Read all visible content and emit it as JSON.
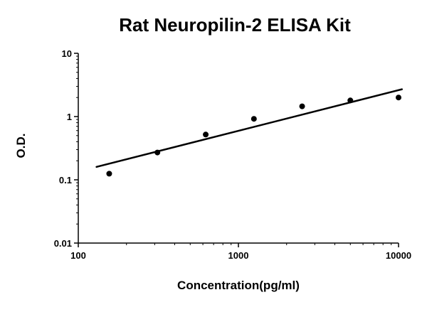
{
  "chart_data": {
    "type": "scatter",
    "title": "Rat Neuropilin-2 ELISA Kit",
    "xlabel": "Concentration(pg/ml)",
    "ylabel": "O.D.",
    "x_scale": "log",
    "y_scale": "log",
    "xlim": [
      100,
      10000
    ],
    "ylim": [
      0.01,
      10
    ],
    "x_ticks": [
      100,
      1000,
      10000
    ],
    "y_ticks": [
      0.01,
      0.1,
      1,
      10
    ],
    "grid": false,
    "legend": false,
    "point_color": "#000000",
    "line_color": "#000000",
    "points": [
      {
        "x": 156,
        "y": 0.125
      },
      {
        "x": 312,
        "y": 0.27
      },
      {
        "x": 625,
        "y": 0.52
      },
      {
        "x": 1250,
        "y": 0.92
      },
      {
        "x": 2500,
        "y": 1.45
      },
      {
        "x": 5000,
        "y": 1.8
      },
      {
        "x": 10000,
        "y": 2.0
      }
    ],
    "trend_line": {
      "x1": 130,
      "y1": 0.16,
      "x2": 10500,
      "y2": 2.7
    }
  }
}
